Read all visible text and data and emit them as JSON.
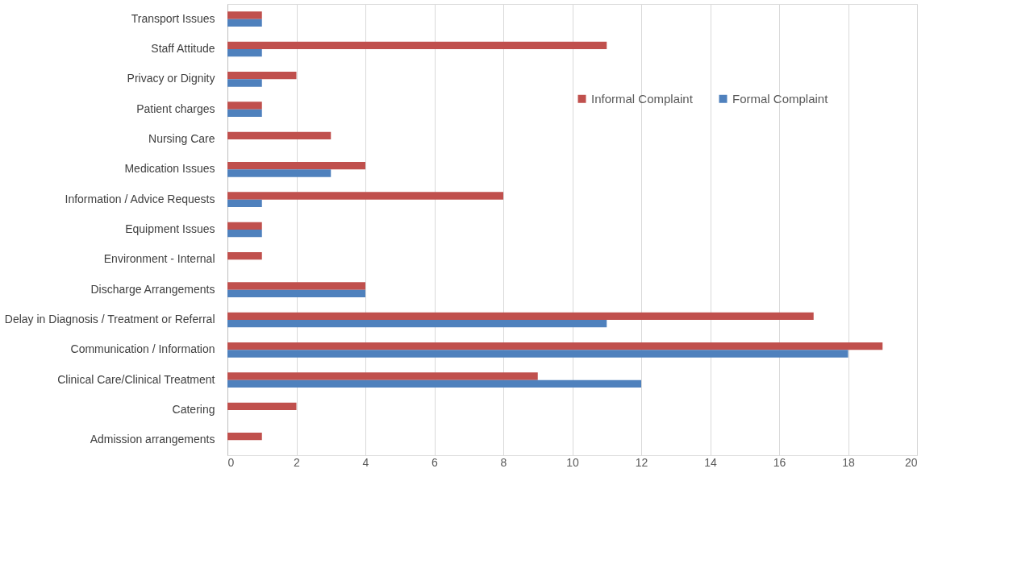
{
  "chart_data": {
    "type": "bar",
    "orientation": "horizontal",
    "categories": [
      "Transport Issues",
      "Staff Attitude",
      "Privacy or Dignity",
      "Patient charges",
      "Nursing Care",
      "Medication Issues",
      "Information / Advice Requests",
      "Equipment Issues",
      "Environment - Internal",
      "Discharge Arrangements",
      "Delay in Diagnosis / Treatment or Referral",
      "Communication / Information",
      "Clinical Care/Clinical Treatment",
      "Catering",
      "Admission arrangements"
    ],
    "series": [
      {
        "name": "Informal Complaint",
        "color": "#c0504d",
        "values": [
          1,
          11,
          2,
          1,
          3,
          4,
          8,
          1,
          1,
          4,
          17,
          19,
          9,
          2,
          1
        ]
      },
      {
        "name": "Formal Complaint",
        "color": "#4f81bd",
        "values": [
          1,
          1,
          1,
          1,
          null,
          3,
          1,
          1,
          null,
          4,
          11,
          18,
          12,
          null,
          null
        ]
      }
    ],
    "xlim": [
      0,
      20
    ],
    "xticks": [
      0,
      2,
      4,
      6,
      8,
      10,
      12,
      14,
      16,
      18,
      20
    ],
    "grid": "x",
    "legend": "top right"
  }
}
